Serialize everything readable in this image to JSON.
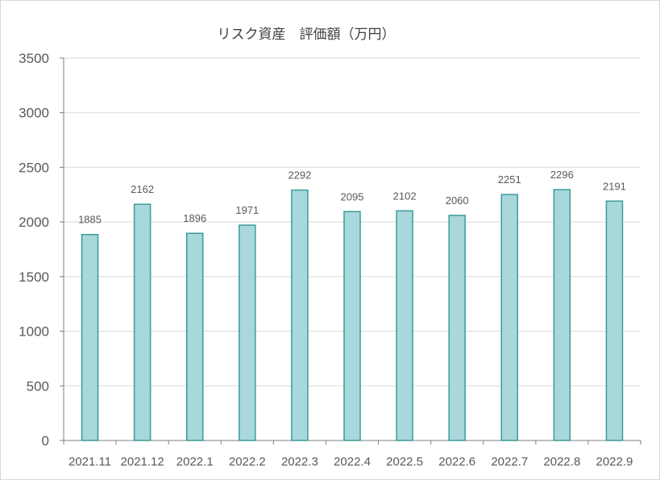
{
  "chart_data": {
    "type": "bar",
    "title": "リスク資産　評価額（万円）",
    "categories": [
      "2021.11",
      "2021.12",
      "2022.1",
      "2022.2",
      "2022.3",
      "2022.4",
      "2022.5",
      "2022.6",
      "2022.7",
      "2022.8",
      "2022.9"
    ],
    "values": [
      1885,
      2162,
      1896,
      1971,
      2292,
      2095,
      2102,
      2060,
      2251,
      2296,
      2191
    ],
    "ylim": [
      0,
      3500
    ],
    "yticks": [
      0,
      500,
      1000,
      1500,
      2000,
      2500,
      3000,
      3500
    ],
    "grid": true,
    "data_labels": true,
    "colors": {
      "bar_fill": "#a8d8dc",
      "bar_stroke": "#3a9c96",
      "grid": "#d9d9d9"
    }
  }
}
